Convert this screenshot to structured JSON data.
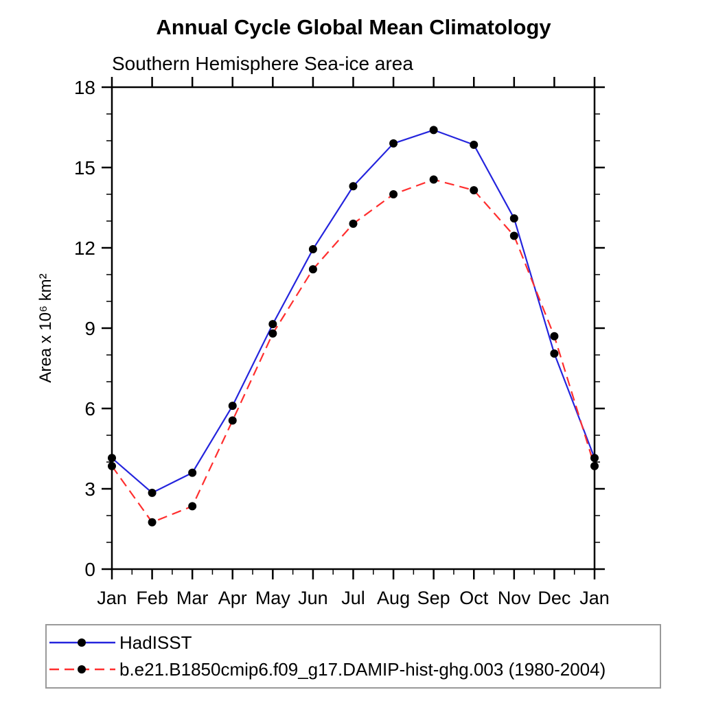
{
  "header": {
    "title": "Annual Cycle Global Mean Climatology",
    "subtitle": "Southern Hemisphere Sea-ice area"
  },
  "chart_data": {
    "type": "line",
    "title": "Annual Cycle Global Mean Climatology",
    "subtitle": "Southern Hemisphere Sea-ice area",
    "xlabel": "",
    "ylabel": "Area x 10⁶ km²",
    "categories": [
      "Jan",
      "Feb",
      "Mar",
      "Apr",
      "May",
      "Jun",
      "Jul",
      "Aug",
      "Sep",
      "Oct",
      "Nov",
      "Dec",
      "Jan"
    ],
    "ylim": [
      0,
      18
    ],
    "yticks": [
      0,
      3,
      6,
      9,
      12,
      15,
      18
    ],
    "y_minor_step": 1,
    "x_minor": "half-month",
    "grid": false,
    "legend_position": "bottom-left-box",
    "series": [
      {
        "name": "HadISST",
        "color": "#2424dd",
        "line_style": "solid",
        "marker": "filled-circle",
        "marker_color": "#000000",
        "values": [
          4.15,
          2.85,
          3.6,
          6.1,
          9.15,
          11.95,
          14.3,
          15.9,
          16.4,
          15.85,
          13.1,
          8.05,
          4.15
        ]
      },
      {
        "name": "b.e21.B1850cmip6.f09_g17.DAMIP-hist-ghg.003 (1980-2004)",
        "color": "#ff2e2e",
        "line_style": "dashed",
        "marker": "filled-circle",
        "marker_color": "#000000",
        "values": [
          3.85,
          1.75,
          2.35,
          5.55,
          8.8,
          11.2,
          12.9,
          14.0,
          14.55,
          14.15,
          12.45,
          8.7,
          3.85
        ]
      }
    ],
    "axis_color": "#000000",
    "legend_border_color": "#999999"
  }
}
